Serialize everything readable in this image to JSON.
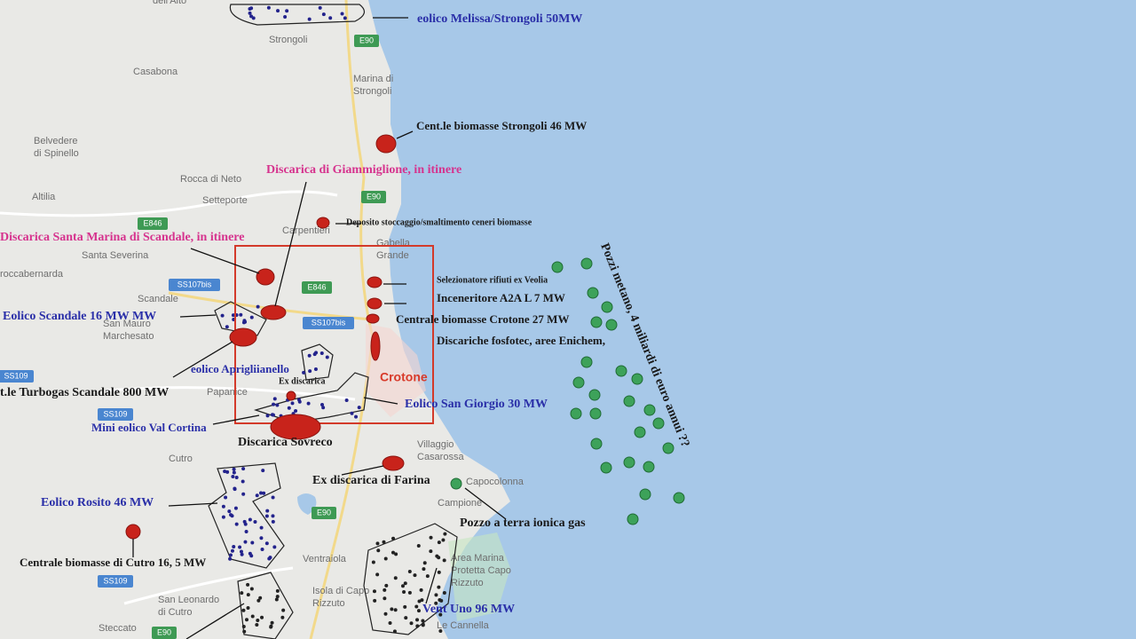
{
  "annotations": [
    "eolico Melissa/Strongoli 50MW",
    "Cent.le biomasse Strongoli 46 MW",
    "Discarica di Giammiglione, in itinere",
    "Deposito stoccaggio/smaltimento ceneri biomasse",
    "Discarica Santa Marina di Scandale, in itinere",
    "Selezionatore rifiuti  ex Veolia",
    "Inceneritore   A2A L 7 MW",
    "Centrale biomasse Crotone 27 MW",
    "Discariche fosfotec, aree Enichem,",
    "Eolico Scandale 16 MW MW",
    "eolico Aprigliianello",
    "Ex discarica",
    "Crotone",
    "Eolico San Giorgio 30 MW",
    "t.le Turbogas Scandale 800 MW",
    "Mini eolico Val Cortina",
    "Discarica Sovreco",
    "Ex discarica di Farina",
    "Pozzo a terra ionica gas",
    "Eolico Rosito 46 MW",
    "Centrale biomasse di Cutro 16, 5 MW",
    "Vent Uno 96 MW",
    "Pozzi metano, 4 miliardi di euro annui ??"
  ],
  "places": [
    [
      "dell'Alto"
    ],
    [
      "Strongoli"
    ],
    [
      "Casabona"
    ],
    [
      "Marina di",
      "Strongoli"
    ],
    [
      "Belvedere",
      "di Spinello"
    ],
    [
      "Rocca di Neto"
    ],
    [
      "Altilia"
    ],
    [
      "Setteporte"
    ],
    [
      "Carpentieri"
    ],
    [
      "Gabella",
      "Grande"
    ],
    [
      "Santa Severina"
    ],
    [
      "roccabernarda"
    ],
    [
      "Scandale"
    ],
    [
      "San Mauro",
      "Marchesato"
    ],
    [
      "Papanice"
    ],
    [
      "Villaggio",
      "Casarossa"
    ],
    [
      "Capocolonna"
    ],
    [
      "Campione"
    ],
    [
      "Cutro"
    ],
    [
      "Ventraiola"
    ],
    [
      "Isola di Capo",
      "Rizzuto"
    ],
    [
      "San Leonardo",
      "di Cutro"
    ],
    [
      "Steccato"
    ],
    [
      "Le Cannella"
    ],
    [
      "Area Marina",
      "Protetta Capo",
      "Rizzuto"
    ]
  ],
  "roads": [
    "E90",
    "E90",
    "E846",
    "E846",
    "SS107bis",
    "SS107bis",
    "SS109",
    "SS109",
    "SS109",
    "E90",
    "E90"
  ]
}
